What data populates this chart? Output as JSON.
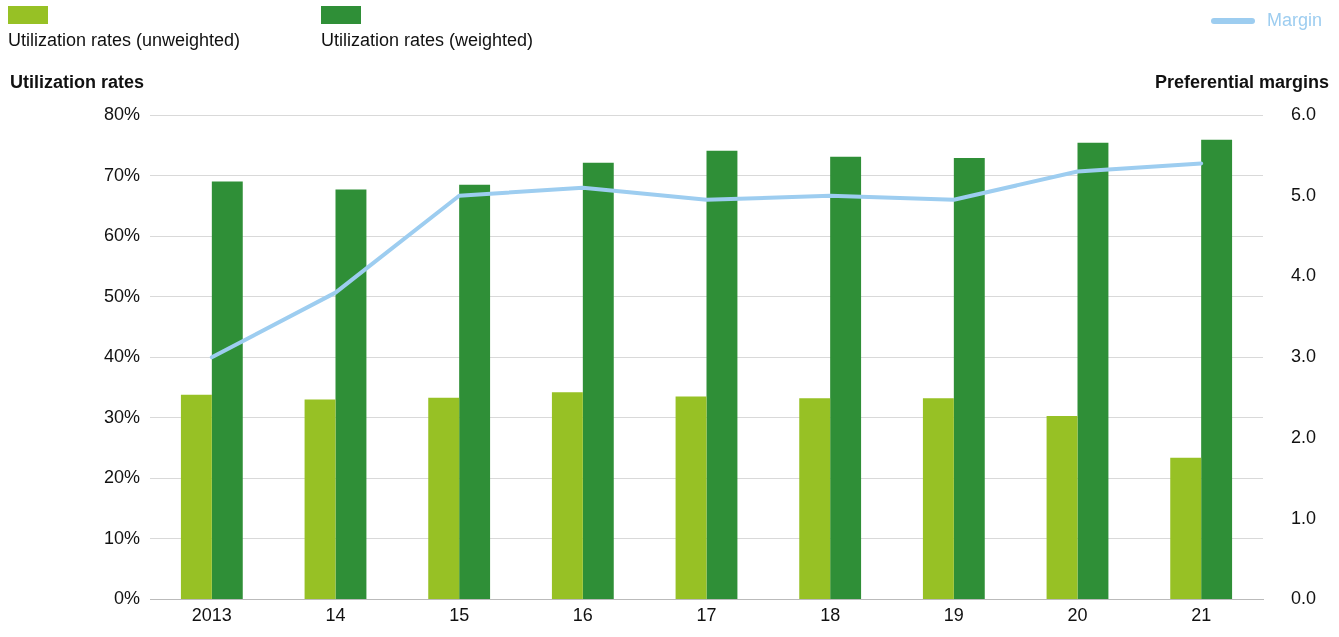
{
  "chart_data": {
    "type": "bar",
    "categories": [
      "2013",
      "14",
      "15",
      "16",
      "17",
      "18",
      "19",
      "20",
      "21"
    ],
    "series": [
      {
        "name": "Utilization rates (unweighted)",
        "color": "#97c125",
        "values": [
          33.8,
          33.0,
          33.3,
          34.2,
          33.5,
          33.2,
          33.2,
          30.3,
          23.4
        ]
      },
      {
        "name": "Utilization rates (weighted)",
        "color": "#2f8f37",
        "values": [
          69.0,
          67.7,
          68.5,
          72.1,
          74.1,
          73.1,
          72.9,
          75.4,
          75.9
        ]
      },
      {
        "name": "Margin",
        "type": "line",
        "axis": "y2",
        "color": "#9dcdf0",
        "marker": "none",
        "values": [
          3.0,
          3.8,
          5.0,
          5.1,
          4.95,
          5.0,
          4.95,
          5.3,
          5.4
        ]
      }
    ],
    "ylabel": "Utilization rates",
    "y2label": "Preferential margins",
    "ylim": [
      0,
      80
    ],
    "yticks": [
      {
        "value": 0,
        "label": "0%"
      },
      {
        "value": 10,
        "label": "10%"
      },
      {
        "value": 20,
        "label": "20%"
      },
      {
        "value": 30,
        "label": "30%"
      },
      {
        "value": 40,
        "label": "40%"
      },
      {
        "value": 50,
        "label": "50%"
      },
      {
        "value": 60,
        "label": "60%"
      },
      {
        "value": 70,
        "label": "70%"
      },
      {
        "value": 80,
        "label": "80%"
      }
    ],
    "y2lim": [
      0,
      6
    ],
    "y2ticks": [
      {
        "value": 0,
        "label": "0.0"
      },
      {
        "value": 1,
        "label": "1.0"
      },
      {
        "value": 2,
        "label": "2.0"
      },
      {
        "value": 3,
        "label": "3.0"
      },
      {
        "value": 4,
        "label": "4.0"
      },
      {
        "value": 5,
        "label": "5.0"
      },
      {
        "value": 6,
        "label": "6.0"
      }
    ],
    "grid": "y",
    "legend": "top"
  }
}
